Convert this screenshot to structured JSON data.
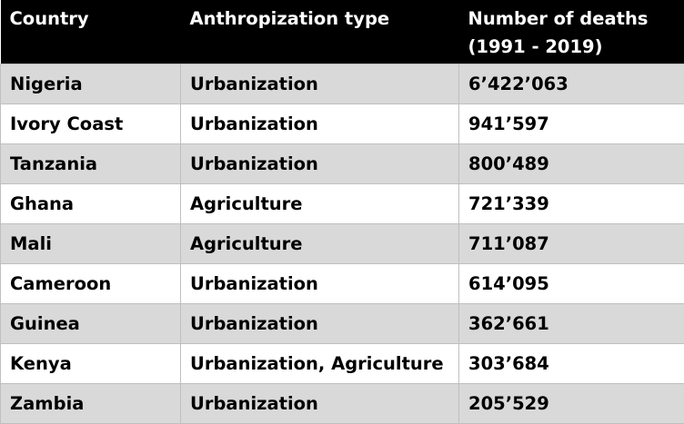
{
  "table": {
    "headers": [
      "Country",
      "Anthropization type",
      "Number of deaths (1991 - 2019)"
    ],
    "rows": [
      [
        "Nigeria",
        "Urbanization",
        "6’422’063"
      ],
      [
        "Ivory Coast",
        "Urbanization",
        "941’597"
      ],
      [
        "Tanzania",
        "Urbanization",
        "800’489"
      ],
      [
        "Ghana",
        "Agriculture",
        "721’339"
      ],
      [
        "Mali",
        "Agriculture",
        "711’087"
      ],
      [
        "Cameroon",
        "Urbanization",
        "614’095"
      ],
      [
        "Guinea",
        "Urbanization",
        "362’661"
      ],
      [
        "Kenya",
        "Urbanization, Agriculture",
        "303’684"
      ],
      [
        "Zambia",
        "Urbanization",
        "205’529"
      ]
    ]
  },
  "colors": {
    "header_bg": "#000000",
    "header_text": "#ffffff",
    "row_shaded": "#d9d9d9",
    "row_plain": "#ffffff",
    "border": "#bfbfbf"
  }
}
